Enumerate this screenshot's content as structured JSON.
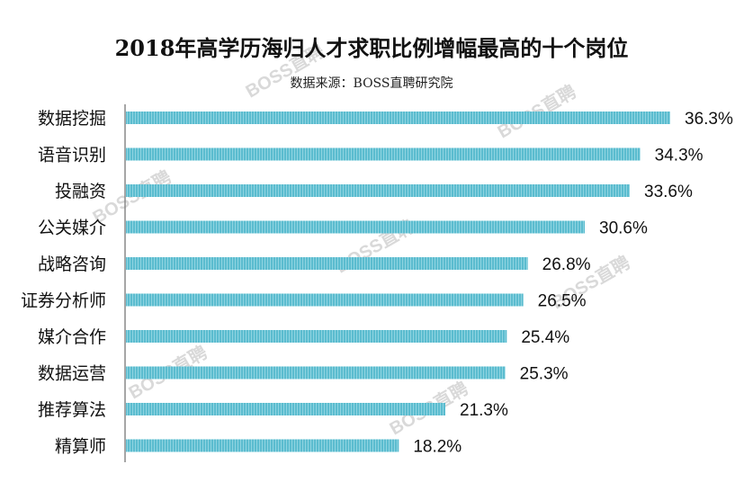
{
  "title": "2018年高学历海归人才求职比例增幅最高的十个岗位",
  "subtitle": "数据来源：BOSS直聘研究院",
  "watermark_text": "BOSS直聘",
  "colors": {
    "bar": "#5bbccf",
    "bar_stripe": "#8fd4e1",
    "axis": "#888888",
    "text": "#111111",
    "watermark": "#d9d9d9"
  },
  "chart_data": {
    "type": "bar",
    "orientation": "horizontal",
    "categories": [
      "数据挖掘",
      "语音识别",
      "投融资",
      "公关媒介",
      "战略咨询",
      "证券分析师",
      "媒介合作",
      "数据运营",
      "推荐算法",
      "精算师"
    ],
    "values": [
      36.3,
      34.3,
      33.6,
      30.6,
      26.8,
      26.5,
      25.4,
      25.3,
      21.3,
      18.2
    ],
    "value_labels": [
      "36.3%",
      "34.3%",
      "33.6%",
      "30.6%",
      "26.8%",
      "26.5%",
      "25.4%",
      "25.3%",
      "21.3%",
      "18.2%"
    ],
    "xlim": [
      0,
      36.3
    ],
    "grid": false,
    "legend": "none"
  }
}
